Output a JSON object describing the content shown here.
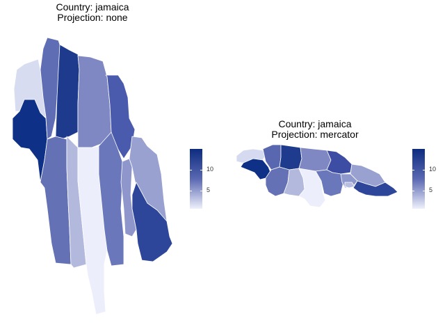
{
  "plots": [
    {
      "title_line1": "Country: jamaica",
      "title_line2": "Projection: none"
    },
    {
      "title_line1": "Country: jamaica",
      "title_line2": "Projection: mercator"
    }
  ],
  "legend": {
    "ticks": [
      "10",
      "5"
    ],
    "min": 1,
    "max": 14,
    "color_low": "#eef0fb",
    "color_high": "#0d2c7f"
  },
  "colors": {
    "parish_border": "#ffffff"
  }
}
